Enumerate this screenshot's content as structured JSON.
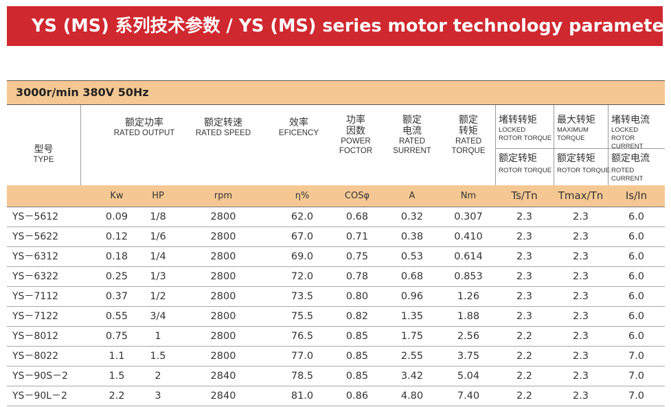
{
  "title": "YS (MS) 系列技术参数 / YS (MS) series motor technology parameters",
  "spec": "3000r/min   380V  50Hz",
  "headers": {
    "type_cn": "型号",
    "type_en": "TYPE",
    "output_cn": "额定功率",
    "output_en": "RATED OUTPUT",
    "speed_cn": "额定转速",
    "speed_en": "RATED SPEED",
    "eff_cn": "效率",
    "eff_en": "EFICENCY",
    "pf_cn1": "功率",
    "pf_cn2": "因数",
    "pf_en1": "POWER",
    "pf_en2": "FOCTOR",
    "cur_cn1": "额定",
    "cur_cn2": "电流",
    "cur_en1": "RATED",
    "cur_en2": "SURRENT",
    "tq_cn1": "额定",
    "tq_cn2": "转矩",
    "tq_en1": "RATED",
    "tq_en2": "TORQUE",
    "lock_cn": "堵转转矩",
    "lock_en1": "LOCKED",
    "lock_en2": "ROTOR TORQUE",
    "lock_sub_cn": "额定转矩",
    "lock_sub_en": "ROTOR TORQUE",
    "max_cn": "最大转矩",
    "max_en1": "MAXIMUM",
    "max_en2": "TORQUE",
    "max_sub_cn": "额定转矩",
    "max_sub_en": "ROTOR TORQUE",
    "lcur_cn": "堵转电流",
    "lcur_en1": "LOCKED",
    "lcur_en2": "ROTOR CURRENT",
    "lcur_sub_cn": "额定电流",
    "lcur_sub_en": "ROTED CURRENT"
  },
  "units": [
    "Kw",
    "HP",
    "rpm",
    "η%",
    "COSφ",
    "A",
    "Nm",
    "Ts/Tn",
    "Tmax/Tn",
    "Is/In"
  ],
  "rows": [
    [
      "YS－5612",
      "0.09",
      "1/8",
      "2800",
      "62.0",
      "0.68",
      "0.32",
      "0.307",
      "2.3",
      "2.3",
      "6.0"
    ],
    [
      "YS－5622",
      "0.12",
      "1/6",
      "2800",
      "67.0",
      "0.71",
      "0.38",
      "0.410",
      "2.3",
      "2.3",
      "6.0"
    ],
    [
      "YS－6312",
      "0.18",
      "1/4",
      "2800",
      "69.0",
      "0.75",
      "0.53",
      "0.614",
      "2.3",
      "2.3",
      "6.0"
    ],
    [
      "YS－6322",
      "0.25",
      "1/3",
      "2800",
      "72.0",
      "0.78",
      "0.68",
      "0.853",
      "2.3",
      "2.3",
      "6.0"
    ],
    [
      "YS－7112",
      "0.37",
      "1/2",
      "2800",
      "73.5",
      "0.80",
      "0.96",
      "1.26",
      "2.3",
      "2.3",
      "6.0"
    ],
    [
      "YS－7122",
      "0.55",
      "3/4",
      "2800",
      "75.5",
      "0.82",
      "1.35",
      "1.88",
      "2.3",
      "2.3",
      "6.0"
    ],
    [
      "YS－8012",
      "0.75",
      "1",
      "2800",
      "76.5",
      "0.85",
      "1.75",
      "2.56",
      "2.2",
      "2.3",
      "6.0"
    ],
    [
      "YS－8022",
      "1.1",
      "1.5",
      "2800",
      "77.0",
      "0.85",
      "2.55",
      "3.75",
      "2.2",
      "2.3",
      "7.0"
    ],
    [
      "YS－90S－2",
      "1.5",
      "2",
      "2840",
      "78.5",
      "0.85",
      "3.42",
      "5.04",
      "2.2",
      "2.3",
      "7.0"
    ],
    [
      "YS－90L－2",
      "2.2",
      "3",
      "2840",
      "81.0",
      "0.86",
      "4.80",
      "7.40",
      "2.2",
      "2.3",
      "7.0"
    ]
  ]
}
